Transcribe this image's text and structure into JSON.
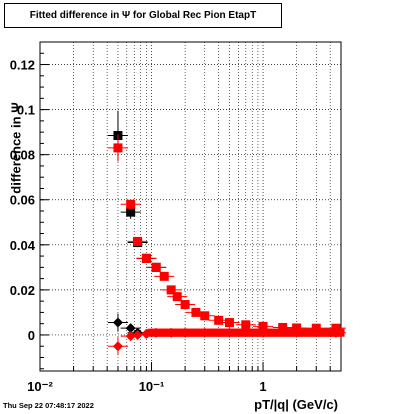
{
  "title": "Fitted difference in  Ψ  for Global Rec Pion EtapT",
  "footer": "Thu Sep 22 07:48:17 2022",
  "chart_data": {
    "type": "scatter",
    "title": "Fitted difference in  Ψ  for Global Rec Pion EtapT",
    "xlabel": "pT/|q| (GeV/c)",
    "ylabel": "difference in Ψ",
    "xscale": "log",
    "xlim": [
      0.01,
      5
    ],
    "ylim": [
      -0.016,
      0.13
    ],
    "grid": true,
    "x_tick_labels": [
      "10⁻²",
      "10⁻¹",
      "1"
    ],
    "y_tick_labels": [
      "0",
      "0.02",
      "0.04",
      "0.06",
      "0.08",
      "0.1",
      "0.12"
    ],
    "y_ticks": [
      0,
      0.02,
      0.04,
      0.06,
      0.08,
      0.1,
      0.12
    ],
    "series": [
      {
        "color": "#000000",
        "marker": "square",
        "points": [
          {
            "x": 0.05,
            "y": 0.0885,
            "err": 0.011
          },
          {
            "x": 0.065,
            "y": 0.0545,
            "err": 0.003
          },
          {
            "x": 0.075,
            "y": 0.041,
            "err": 0.002
          },
          {
            "x": 0.09,
            "y": 0.034,
            "err": 0.001
          },
          {
            "x": 0.11,
            "y": 0.03,
            "err": 0.001
          }
        ]
      },
      {
        "color": "#ff0000",
        "marker": "square",
        "points": [
          {
            "x": 0.05,
            "y": 0.083,
            "err": 0.006
          },
          {
            "x": 0.065,
            "y": 0.058,
            "err": 0.002
          },
          {
            "x": 0.075,
            "y": 0.0415,
            "err": 0.001
          },
          {
            "x": 0.09,
            "y": 0.034,
            "err": 0.0
          },
          {
            "x": 0.11,
            "y": 0.03,
            "err": 0.0
          },
          {
            "x": 0.13,
            "y": 0.026,
            "err": 0.0
          },
          {
            "x": 0.15,
            "y": 0.02,
            "err": 0.0
          },
          {
            "x": 0.17,
            "y": 0.017,
            "err": 0.0
          },
          {
            "x": 0.2,
            "y": 0.0135,
            "err": 0.0
          },
          {
            "x": 0.25,
            "y": 0.01,
            "err": 0.0
          },
          {
            "x": 0.3,
            "y": 0.0085,
            "err": 0.0
          },
          {
            "x": 0.4,
            "y": 0.0065,
            "err": 0.0
          },
          {
            "x": 0.5,
            "y": 0.0055,
            "err": 0.0
          },
          {
            "x": 0.7,
            "y": 0.0045,
            "err": 0.0
          },
          {
            "x": 1.0,
            "y": 0.0038,
            "err": 0.0
          },
          {
            "x": 1.5,
            "y": 0.0033,
            "err": 0.0
          },
          {
            "x": 2.0,
            "y": 0.0031,
            "err": 0.0
          },
          {
            "x": 3.0,
            "y": 0.003,
            "err": 0.0
          },
          {
            "x": 4.5,
            "y": 0.003,
            "err": 0.0
          }
        ]
      },
      {
        "color": "#000000",
        "marker": "diamond",
        "points": [
          {
            "x": 0.05,
            "y": 0.0055,
            "err": 0.004
          },
          {
            "x": 0.065,
            "y": 0.003,
            "err": 0.001
          },
          {
            "x": 0.075,
            "y": 0.001,
            "err": 0.0
          },
          {
            "x": 0.09,
            "y": 0.0005,
            "err": 0.0
          }
        ]
      },
      {
        "color": "#ff0000",
        "marker": "diamond",
        "points": [
          {
            "x": 0.05,
            "y": -0.005,
            "err": 0.004
          },
          {
            "x": 0.065,
            "y": -0.0005,
            "err": 0.001
          },
          {
            "x": 0.075,
            "y": 0.0,
            "err": 0.0
          },
          {
            "x": 0.09,
            "y": 0.0005,
            "err": 0.0
          },
          {
            "x": 0.11,
            "y": 0.001,
            "err": 0.0
          },
          {
            "x": 0.15,
            "y": 0.001,
            "err": 0.0
          },
          {
            "x": 0.2,
            "y": 0.001,
            "err": 0.0
          },
          {
            "x": 0.3,
            "y": 0.001,
            "err": 0.0
          },
          {
            "x": 0.5,
            "y": 0.001,
            "err": 0.0
          },
          {
            "x": 1.0,
            "y": 0.001,
            "err": 0.0
          },
          {
            "x": 2.0,
            "y": 0.001,
            "err": 0.0
          },
          {
            "x": 4.5,
            "y": 0.001,
            "err": 0.0
          }
        ]
      }
    ],
    "dense_band": {
      "color": "#ff0000",
      "x_range": [
        0.1,
        5
      ],
      "y_center": 0.001,
      "description": "continuous run of red markers along y≈0 from x≈0.1 to the right edge"
    }
  }
}
